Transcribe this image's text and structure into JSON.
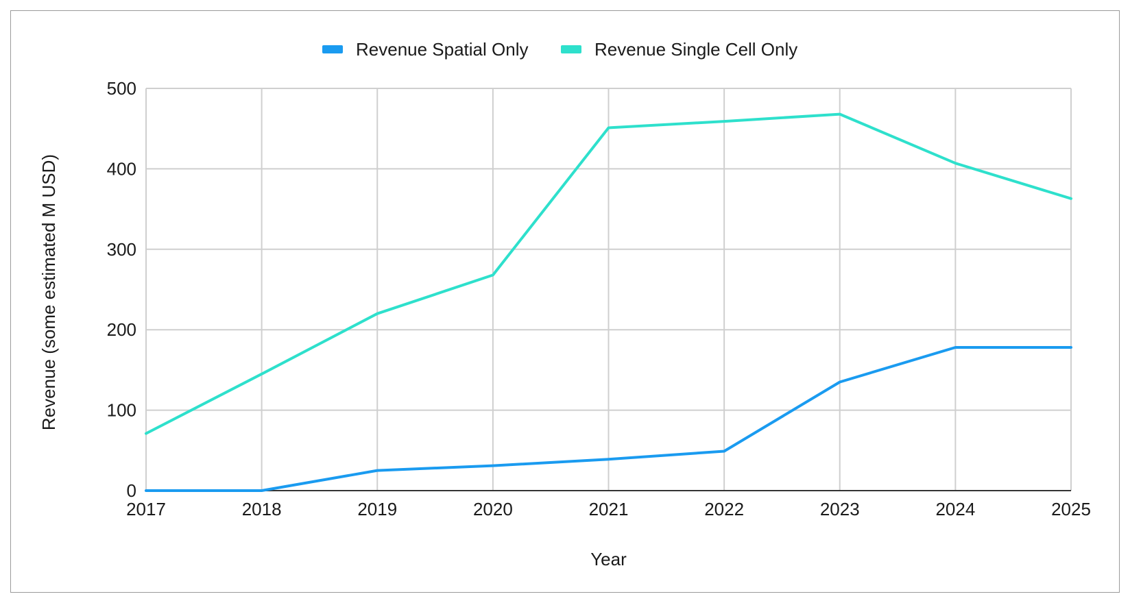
{
  "chart_data": {
    "type": "line",
    "title": "",
    "xlabel": "Year",
    "ylabel": "Revenue (some estimated M USD)",
    "categories": [
      "2017",
      "2018",
      "2019",
      "2020",
      "2021",
      "2022",
      "2023",
      "2024",
      "2025"
    ],
    "ylim": [
      0,
      500
    ],
    "yticks": [
      "0",
      "100",
      "200",
      "300",
      "400",
      "500"
    ],
    "grid": true,
    "legend_position": "top-center",
    "series": [
      {
        "name": "Revenue Spatial Only",
        "color": "#1a9bf0",
        "values": [
          0,
          0,
          25,
          31,
          39,
          49,
          135,
          178,
          178
        ]
      },
      {
        "name": "Revenue Single Cell Only",
        "color": "#2ee0cc",
        "values": [
          71,
          145,
          220,
          268,
          451,
          459,
          468,
          407,
          363
        ]
      }
    ]
  }
}
